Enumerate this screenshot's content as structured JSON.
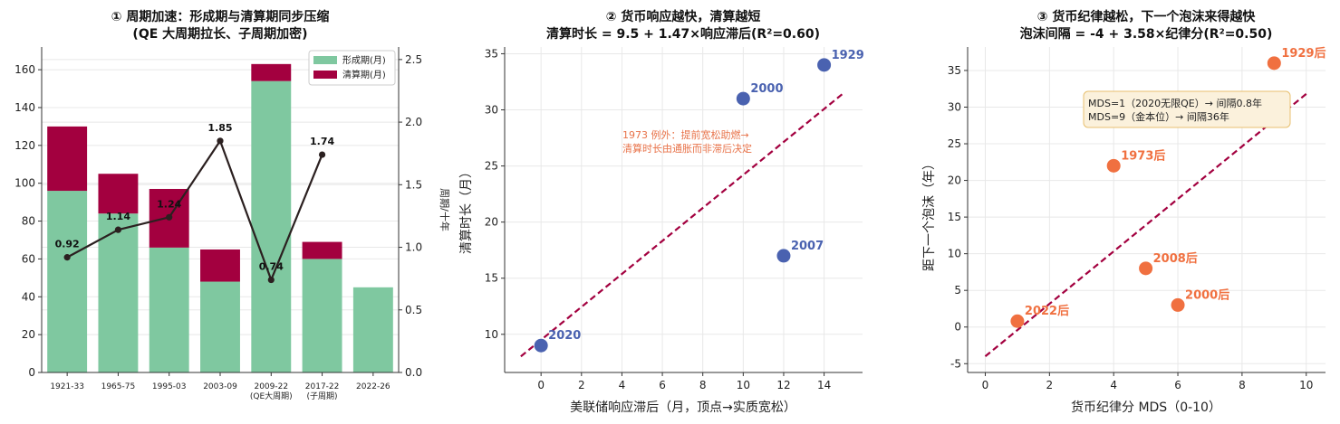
{
  "chart_data": [
    {
      "type": "bar",
      "title_line1": "① 周期加速：形成期与清算期同步压缩",
      "title_line2": "(QE 大周期拉长、子周期加密)",
      "categories": [
        "1921-33",
        "1965-75",
        "1995-03",
        "2003-09",
        "2009-22",
        "2017-22",
        "2022-26"
      ],
      "category_sublabels": [
        "",
        "",
        "",
        "",
        "(QE大周期)",
        "(子周期)",
        ""
      ],
      "series": [
        {
          "name": "形成期(月)",
          "values": [
            96,
            84,
            66,
            48,
            154,
            60,
            45
          ],
          "color": "#7fc8a0"
        },
        {
          "name": "清算期(月)",
          "values": [
            34,
            21,
            31,
            17,
            9,
            9,
            0
          ],
          "color": "#a3003f"
        }
      ],
      "line_series": {
        "name": "周期/十年",
        "values": [
          0.92,
          1.14,
          1.24,
          1.85,
          0.74,
          1.74
        ],
        "labels": [
          "0.92",
          "1.14",
          "1.24",
          "1.85",
          "0.74",
          "1.74"
        ],
        "color": "#2b2020"
      },
      "ylim": [
        0,
        172
      ],
      "yticks": [
        "0",
        "20",
        "40",
        "60",
        "80",
        "100",
        "120",
        "140",
        "160"
      ],
      "y2lim": [
        0,
        2.6
      ],
      "y2ticks": [
        "0.0",
        "0.5",
        "1.0",
        "1.5",
        "2.0",
        "2.5"
      ],
      "y2label": "周期/十年",
      "legend_position": "top-right",
      "grid": true
    },
    {
      "type": "scatter",
      "title_line1": "② 货币响应越快，清算越短",
      "title_line2": "清算时长 = 9.5 + 1.47×响应滞后(R²=0.60)",
      "points": [
        {
          "label": "2020",
          "x": 0,
          "y": 9
        },
        {
          "label": "2000",
          "x": 10,
          "y": 31
        },
        {
          "label": "1929",
          "x": 14,
          "y": 34
        },
        {
          "label": "2007",
          "x": 12,
          "y": 17
        }
      ],
      "fit": {
        "intercept": 9.5,
        "slope": 1.47,
        "x_range": [
          -1,
          15
        ]
      },
      "xlabel": "美联储响应滞后（月，顶点→实质宽松）",
      "ylabel": "清算时长（月）",
      "xlim": [
        -1.8,
        15.9
      ],
      "ylim": [
        6.6,
        35.6
      ],
      "xticks": [
        "0",
        "2",
        "4",
        "6",
        "8",
        "10",
        "12",
        "14"
      ],
      "yticks": [
        "10",
        "15",
        "20",
        "25",
        "30",
        "35"
      ],
      "annotation_line1": "1973 例外：提前宽松助燃→",
      "annotation_line2": "清算时长由通胀而非滞后决定",
      "point_color": "#4a62b0",
      "fit_color": "#a3003f",
      "annotation_color": "#e8734a",
      "grid": true
    },
    {
      "type": "scatter",
      "title_line1": "③ 货币纪律越松，下一个泡沫来得越快",
      "title_line2": "泡沫间隔 = -4 + 3.58×纪律分(R²=0.50)",
      "points": [
        {
          "label": "1929后",
          "x": 9,
          "y": 36
        },
        {
          "label": "1973后",
          "x": 4,
          "y": 22
        },
        {
          "label": "2008后",
          "x": 5,
          "y": 8
        },
        {
          "label": "2000后",
          "x": 6,
          "y": 3
        },
        {
          "label": "2022后",
          "x": 1,
          "y": 0.8
        }
      ],
      "fit": {
        "intercept": -4,
        "slope": 3.58,
        "x_range": [
          0,
          10
        ]
      },
      "xlabel": "货币纪律分 MDS（0-10）",
      "ylabel": "距下一个泡沫（年）",
      "xlim": [
        -0.55,
        10.6
      ],
      "ylim": [
        -6.2,
        38.2
      ],
      "xticks": [
        "0",
        "2",
        "4",
        "6",
        "8",
        "10"
      ],
      "yticks": [
        "-5",
        "0",
        "5",
        "10",
        "15",
        "20",
        "25",
        "30",
        "35"
      ],
      "box_line1": "MDS=1（2020无限QE）→ 间隔0.8年",
      "box_line2": "MDS=9（金本位）→ 间隔36年",
      "point_color": "#f07040",
      "fit_color": "#a3003f",
      "box_fill": "#fbf1dc",
      "box_stroke": "#e8c070",
      "grid": true
    }
  ]
}
